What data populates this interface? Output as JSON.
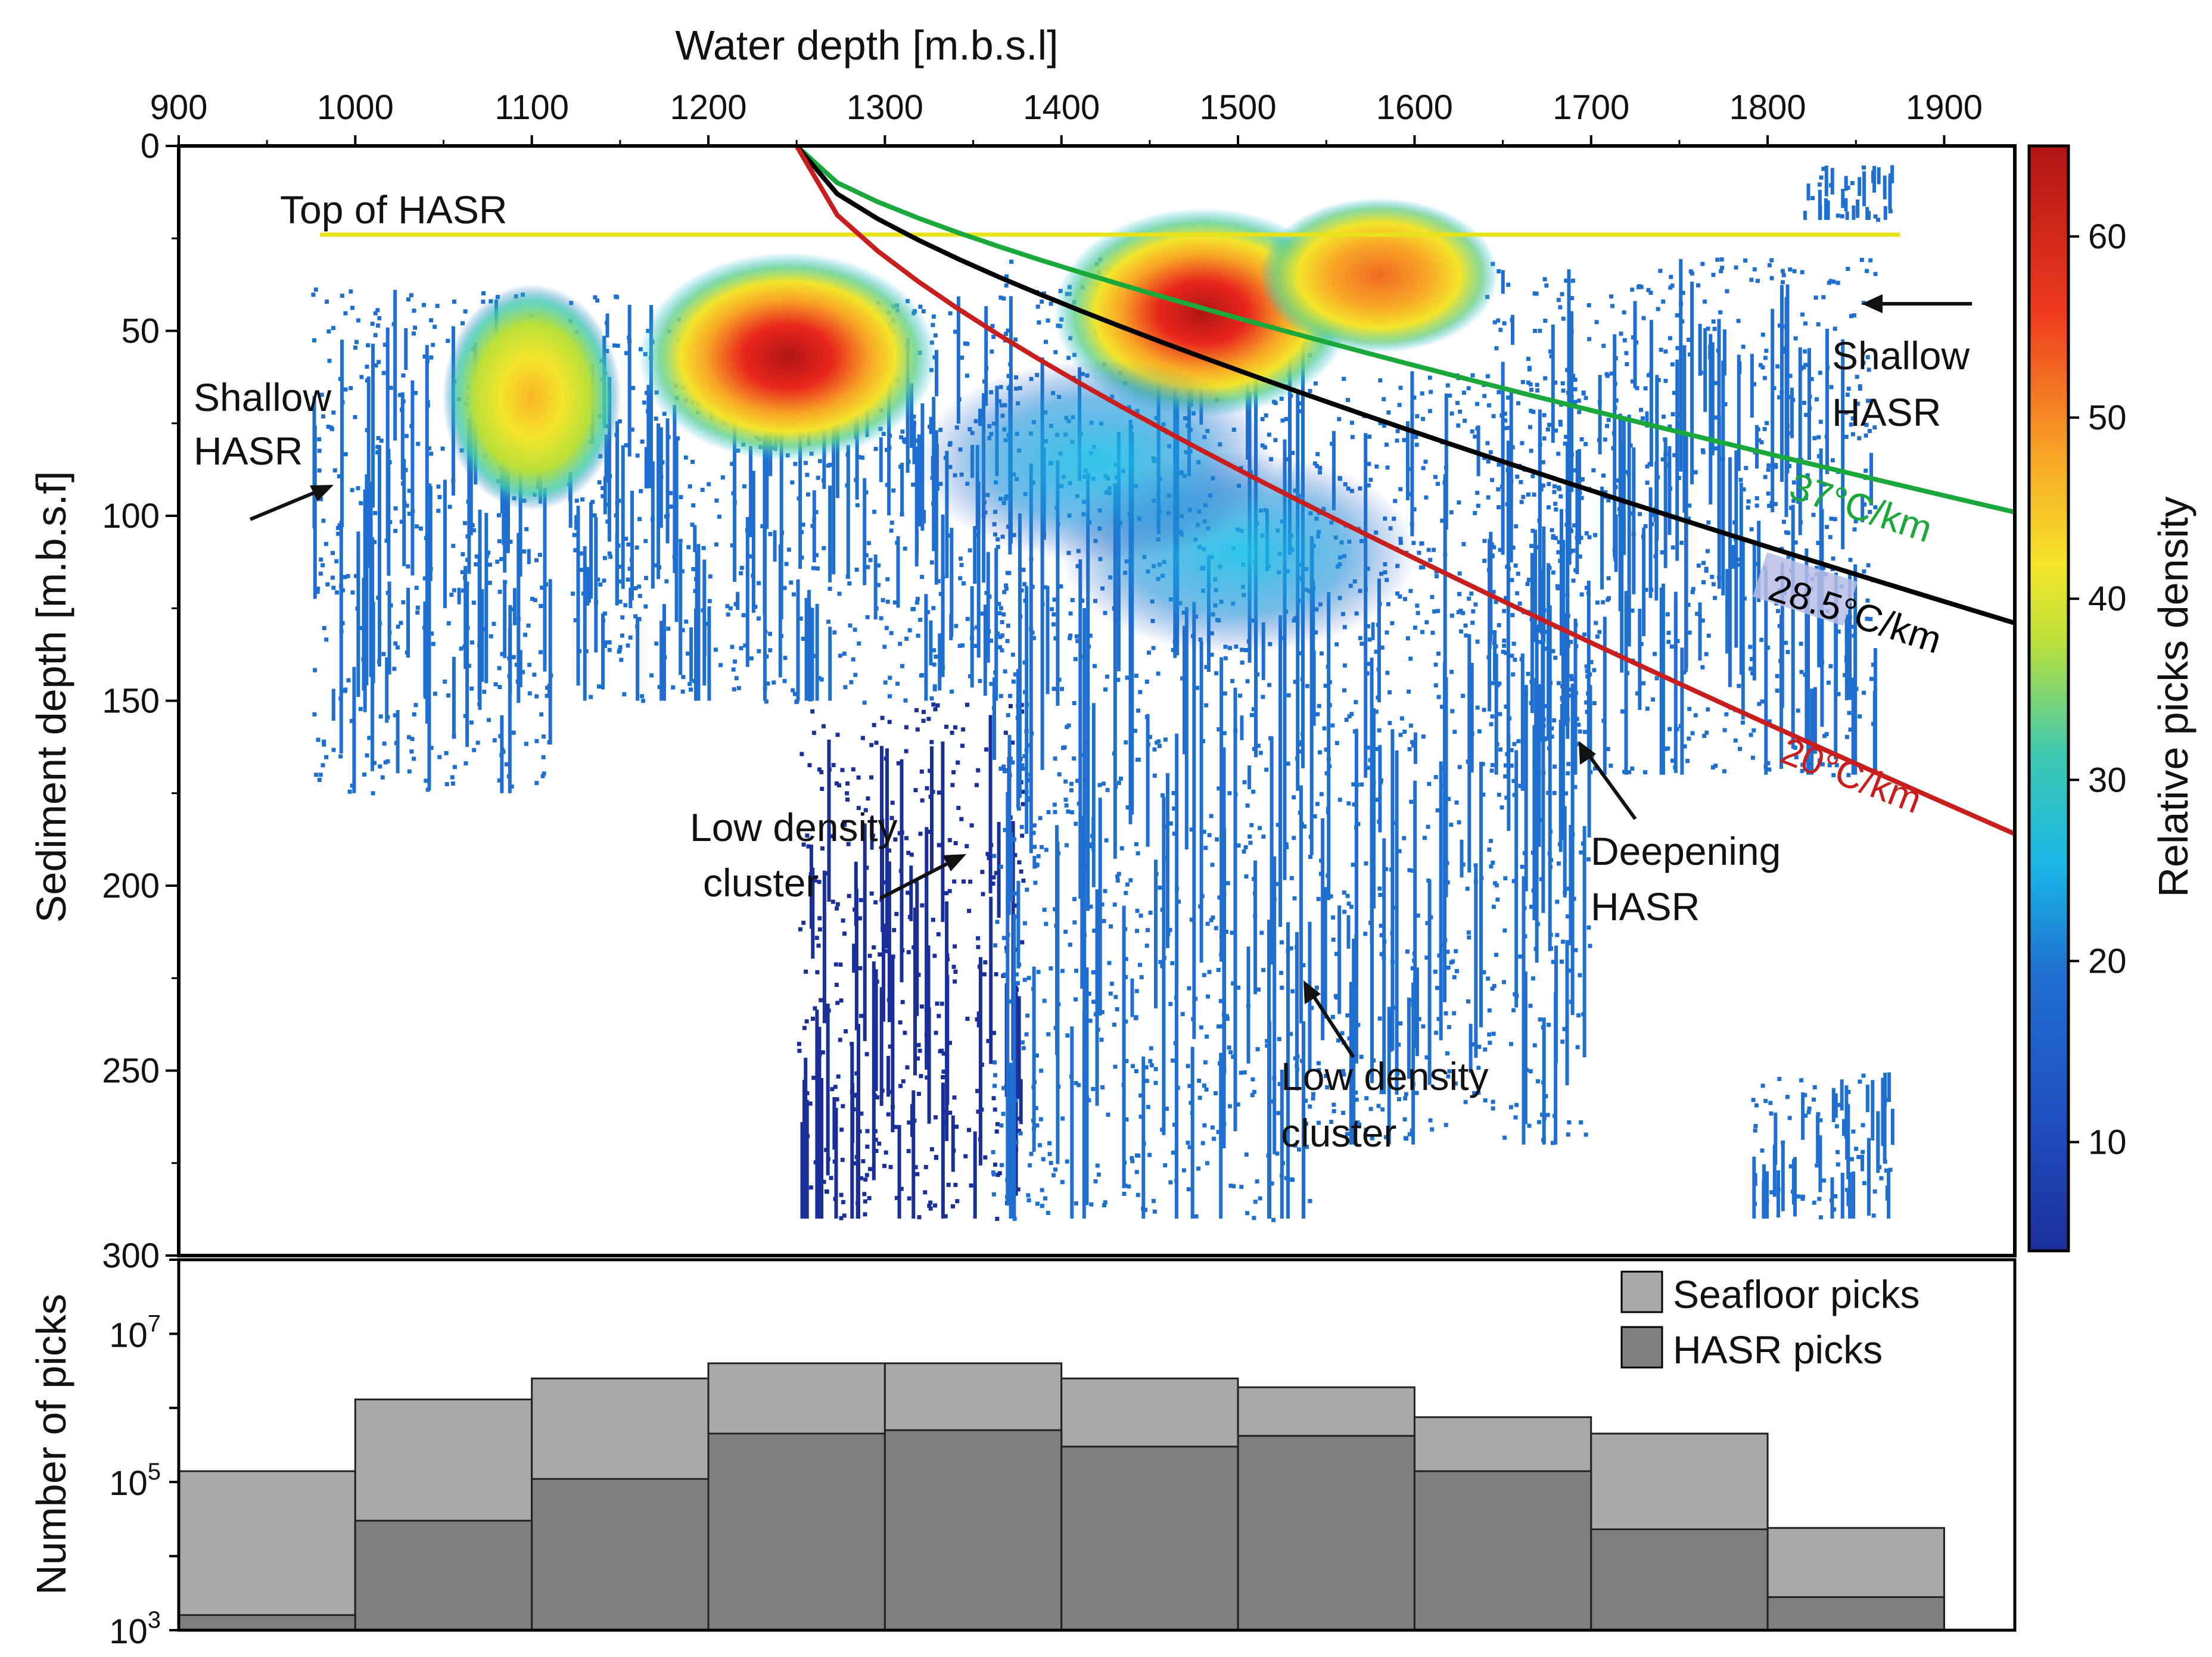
{
  "chart_data": [
    {
      "type": "heatmap",
      "xlabel": "Water depth [m.b.s.l]",
      "ylabel": "Sediment depth [m.b.s.f]",
      "xlim": [
        900,
        1940
      ],
      "ylim": [
        0,
        300
      ],
      "x_ticks": [
        900,
        1000,
        1100,
        1200,
        1300,
        1400,
        1500,
        1600,
        1700,
        1800,
        1900
      ],
      "y_ticks": [
        0,
        50,
        100,
        150,
        200,
        250,
        300
      ],
      "colorbar": {
        "label": "Relative picks density",
        "range": [
          4,
          65
        ],
        "ticks": [
          10,
          20,
          30,
          40,
          50,
          60
        ],
        "colors": [
          "#1b2f9b",
          "#1f6fd0",
          "#19b7e6",
          "#3ec9b0",
          "#b9e03a",
          "#f4e52a",
          "#f8a526",
          "#ee3a1e",
          "#b01414"
        ]
      },
      "hotspots": [
        {
          "x": 1100,
          "y": 68,
          "density": 44
        },
        {
          "x": 1245,
          "y": 57,
          "density": 62
        },
        {
          "x": 1480,
          "y": 45,
          "density": 62
        },
        {
          "x": 1580,
          "y": 35,
          "density": 50
        },
        {
          "x": 1500,
          "y": 110,
          "density": 24
        },
        {
          "x": 1420,
          "y": 85,
          "density": 22
        }
      ],
      "point_regions": [
        {
          "x_range": [
            975,
            1110
          ],
          "y_range": [
            38,
            175
          ],
          "density": 8
        },
        {
          "x_range": [
            1120,
            1370
          ],
          "y_range": [
            40,
            150
          ],
          "density": 10
        },
        {
          "x_range": [
            1250,
            1380
          ],
          "y_range": [
            150,
            290
          ],
          "density": 7
        },
        {
          "x_range": [
            1360,
            1540
          ],
          "y_range": [
            30,
            290
          ],
          "density": 12
        },
        {
          "x_range": [
            1540,
            1700
          ],
          "y_range": [
            60,
            270
          ],
          "density": 10
        },
        {
          "x_range": [
            1640,
            1860
          ],
          "y_range": [
            30,
            170
          ],
          "density": 12
        },
        {
          "x_range": [
            1820,
            1870
          ],
          "y_range": [
            5,
            20
          ],
          "density": 8
        },
        {
          "x_range": [
            1790,
            1870
          ],
          "y_range": [
            250,
            290
          ],
          "density": 8
        }
      ],
      "lines": [
        {
          "name": "Top of HASR",
          "color": "#e8e21c",
          "x": [
            980,
            1875
          ],
          "y": [
            24,
            24
          ]
        },
        {
          "name": "37°C/km",
          "color": "#1aa83a",
          "x": [
            1250,
            1940
          ],
          "y": [
            0,
            99
          ]
        },
        {
          "name": "28.5°C/km",
          "color": "#000000",
          "x": [
            1250,
            1940
          ],
          "y": [
            0,
            129
          ]
        },
        {
          "name": "20°C/km",
          "color": "#c81e1e",
          "x": [
            1250,
            1940
          ],
          "y": [
            0,
            186
          ]
        }
      ],
      "annotations": [
        {
          "text": "Top of HASR"
        },
        {
          "text": "Shallow HASR"
        },
        {
          "text": "Shallow HASR"
        },
        {
          "text": "Deepening HASR"
        },
        {
          "text": "Low density cluster"
        },
        {
          "text": "Low density cluster"
        },
        {
          "text": "37°C/km"
        },
        {
          "text": "28.5°C/km"
        },
        {
          "text": "20°C/km"
        }
      ]
    },
    {
      "type": "bar",
      "ylabel": "Number of picks",
      "yscale": "log",
      "ylim": [
        1000,
        100000000
      ],
      "y_tick_labels": [
        {
          "base": "10",
          "exp": "3",
          "value": 1000
        },
        {
          "base": "10",
          "exp": "5",
          "value": 100000
        },
        {
          "base": "10",
          "exp": "7",
          "value": 10000000
        }
      ],
      "x_bins": [
        900,
        1000,
        1100,
        1200,
        1300,
        1400,
        1500,
        1600,
        1700,
        1800,
        1900
      ],
      "series": [
        {
          "name": "Seafloor picks",
          "color": "#a9a9a9",
          "values": [
            140000,
            1300000,
            2500000,
            4000000,
            4000000,
            2500000,
            1900000,
            750000,
            450000,
            24000
          ]
        },
        {
          "name": "HASR picks",
          "color": "#7f7f7f",
          "values": [
            1600,
            30000,
            110000,
            450000,
            500000,
            300000,
            420000,
            140000,
            23000,
            2800
          ]
        }
      ]
    }
  ],
  "labels": {
    "top_of_hasr": "Top of HASR",
    "shallow": "Shallow",
    "hasr": "HASR",
    "deepening": "Deepening",
    "low_density": "Low density",
    "cluster": "cluster",
    "g37": "37°C/km",
    "g285": "28.5°C/km",
    "g20": "20°C/km"
  }
}
